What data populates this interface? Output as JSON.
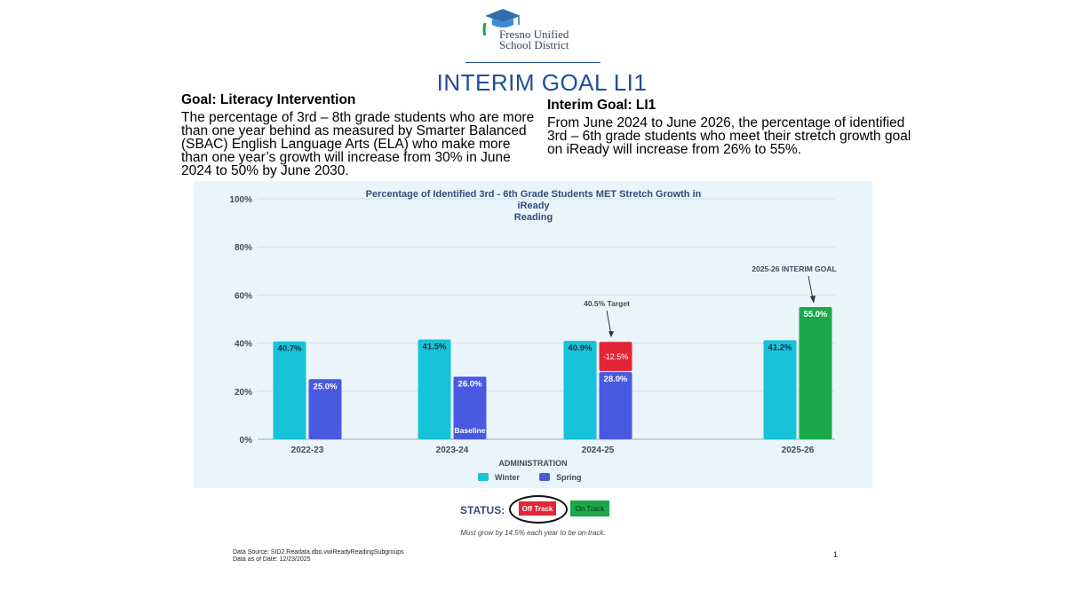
{
  "logo": {
    "line1": "Fresno Unified",
    "line2": "School District"
  },
  "title": "INTERIM GOAL LI1",
  "goal": {
    "heading": "Goal: Literacy Intervention",
    "text": "The percentage of 3rd – 8th grade students who are more than one year behind as measured by Smarter Balanced (SBAC) English Language Arts (ELA) who make more than one year’s growth will increase from 30% in June 2024 to 50% by June 2030."
  },
  "interim": {
    "heading": "Interim Goal: LI1",
    "text": "From June 2024 to June 2026, the percentage of identified 3rd – 6th grade students who meet their stretch growth goal on iReady will increase from 26% to 55%."
  },
  "chart_data": {
    "type": "bar",
    "title_line1": "Percentage of Identified 3rd - 6th Grade Students MET Stretch Growth in iReady",
    "title_line2": "Reading",
    "categories": [
      "2022-23",
      "2023-24",
      "2024-25",
      "2025-26"
    ],
    "series": [
      {
        "name": "Winter",
        "color": "#17c3d9",
        "values": [
          40.7,
          41.5,
          40.9,
          41.2
        ],
        "labels": [
          "40.7%",
          "41.5%",
          "40.9%",
          "41.2%"
        ]
      },
      {
        "name": "Spring",
        "color": "#4a5ae0",
        "values": [
          25.0,
          26.0,
          28.0,
          55.0
        ],
        "labels": [
          "25.0%",
          "26.0%",
          "28.0%",
          "55.0%"
        ]
      }
    ],
    "goal_bar_color": "#1aa84a",
    "gap": {
      "category": "2024-25",
      "value": -12.5,
      "label": "-12.5%",
      "target": 40.5,
      "color": "#e32636"
    },
    "ylim": [
      0,
      100
    ],
    "yticks": [
      "0%",
      "20%",
      "40%",
      "60%",
      "80%",
      "100%"
    ],
    "xlabel": "ADMINISTRATION",
    "annotations": {
      "target": "40.5% Target",
      "interim_goal": "2025-26 INTERIM GOAL",
      "baseline": "Baseline"
    },
    "legend_position": "bottom-center",
    "grid": true
  },
  "status": {
    "label": "STATUS:",
    "off_track": "Off Track",
    "on_track": "On Track",
    "selected": "Off Track"
  },
  "note": "Must grow by 14.5% each year to be on-track.",
  "footer": {
    "source": "Data Source:  SID2.Readata.dbo.vwiReadyReadingSubgroups",
    "date": "Data as of Date:  12/23/2025",
    "page": "1"
  }
}
